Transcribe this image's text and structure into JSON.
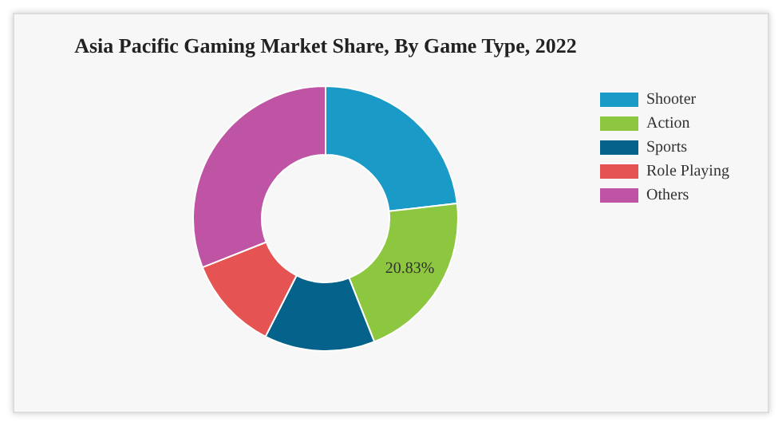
{
  "chart_data": {
    "type": "donut",
    "title": "Asia Pacific Gaming Market Share, By Game Type, 2022",
    "categories": [
      "Shooter",
      "Action",
      "Sports",
      "Role Playing",
      "Others"
    ],
    "values": [
      23.17,
      20.83,
      13.5,
      11.5,
      31
    ],
    "colors": [
      "#1a9ac6",
      "#8dc63f",
      "#05628a",
      "#e65353",
      "#c054a4"
    ],
    "value_labels": [
      null,
      "20.83%",
      null,
      null,
      null
    ],
    "legend": "top right"
  }
}
